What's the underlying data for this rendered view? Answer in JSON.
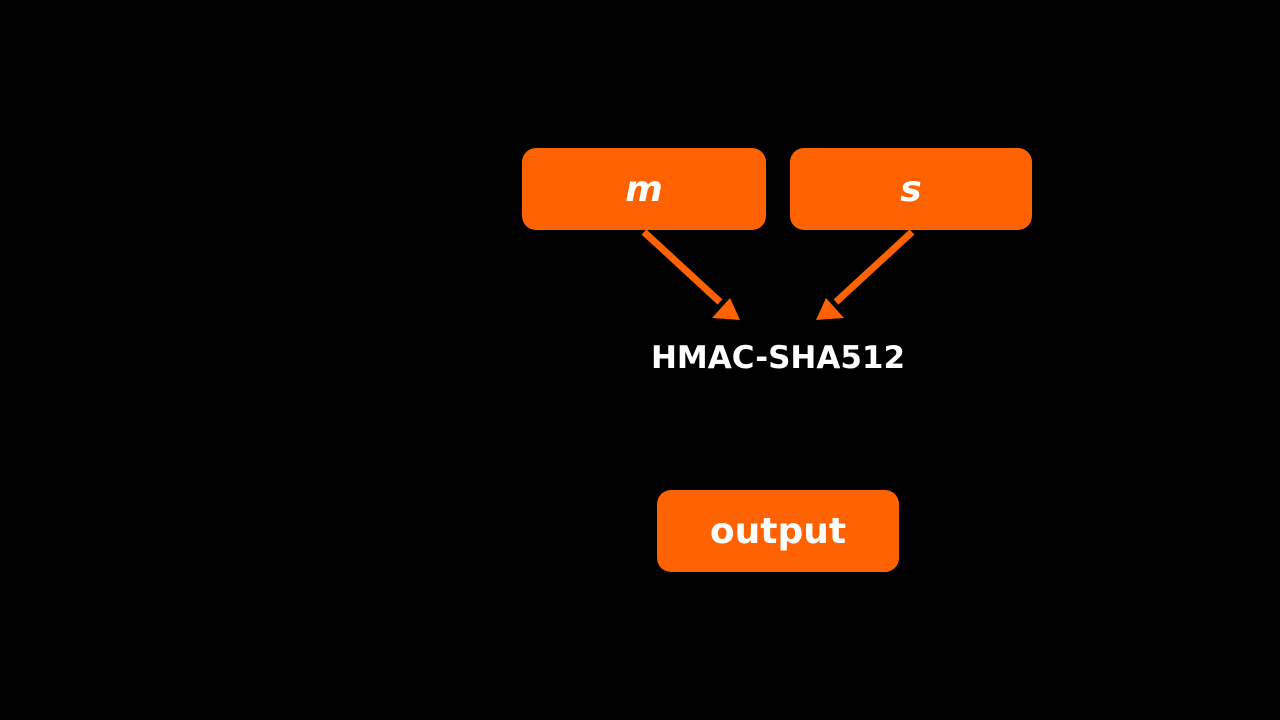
{
  "diagram": {
    "inputs": [
      {
        "label": "m"
      },
      {
        "label": "s"
      }
    ],
    "function_label": "HMAC-SHA512",
    "output_label": "output",
    "colors": {
      "background": "#000000",
      "box_fill": "#FF6200",
      "arrow": "#FF6200",
      "text": "#FFFFFF"
    }
  }
}
